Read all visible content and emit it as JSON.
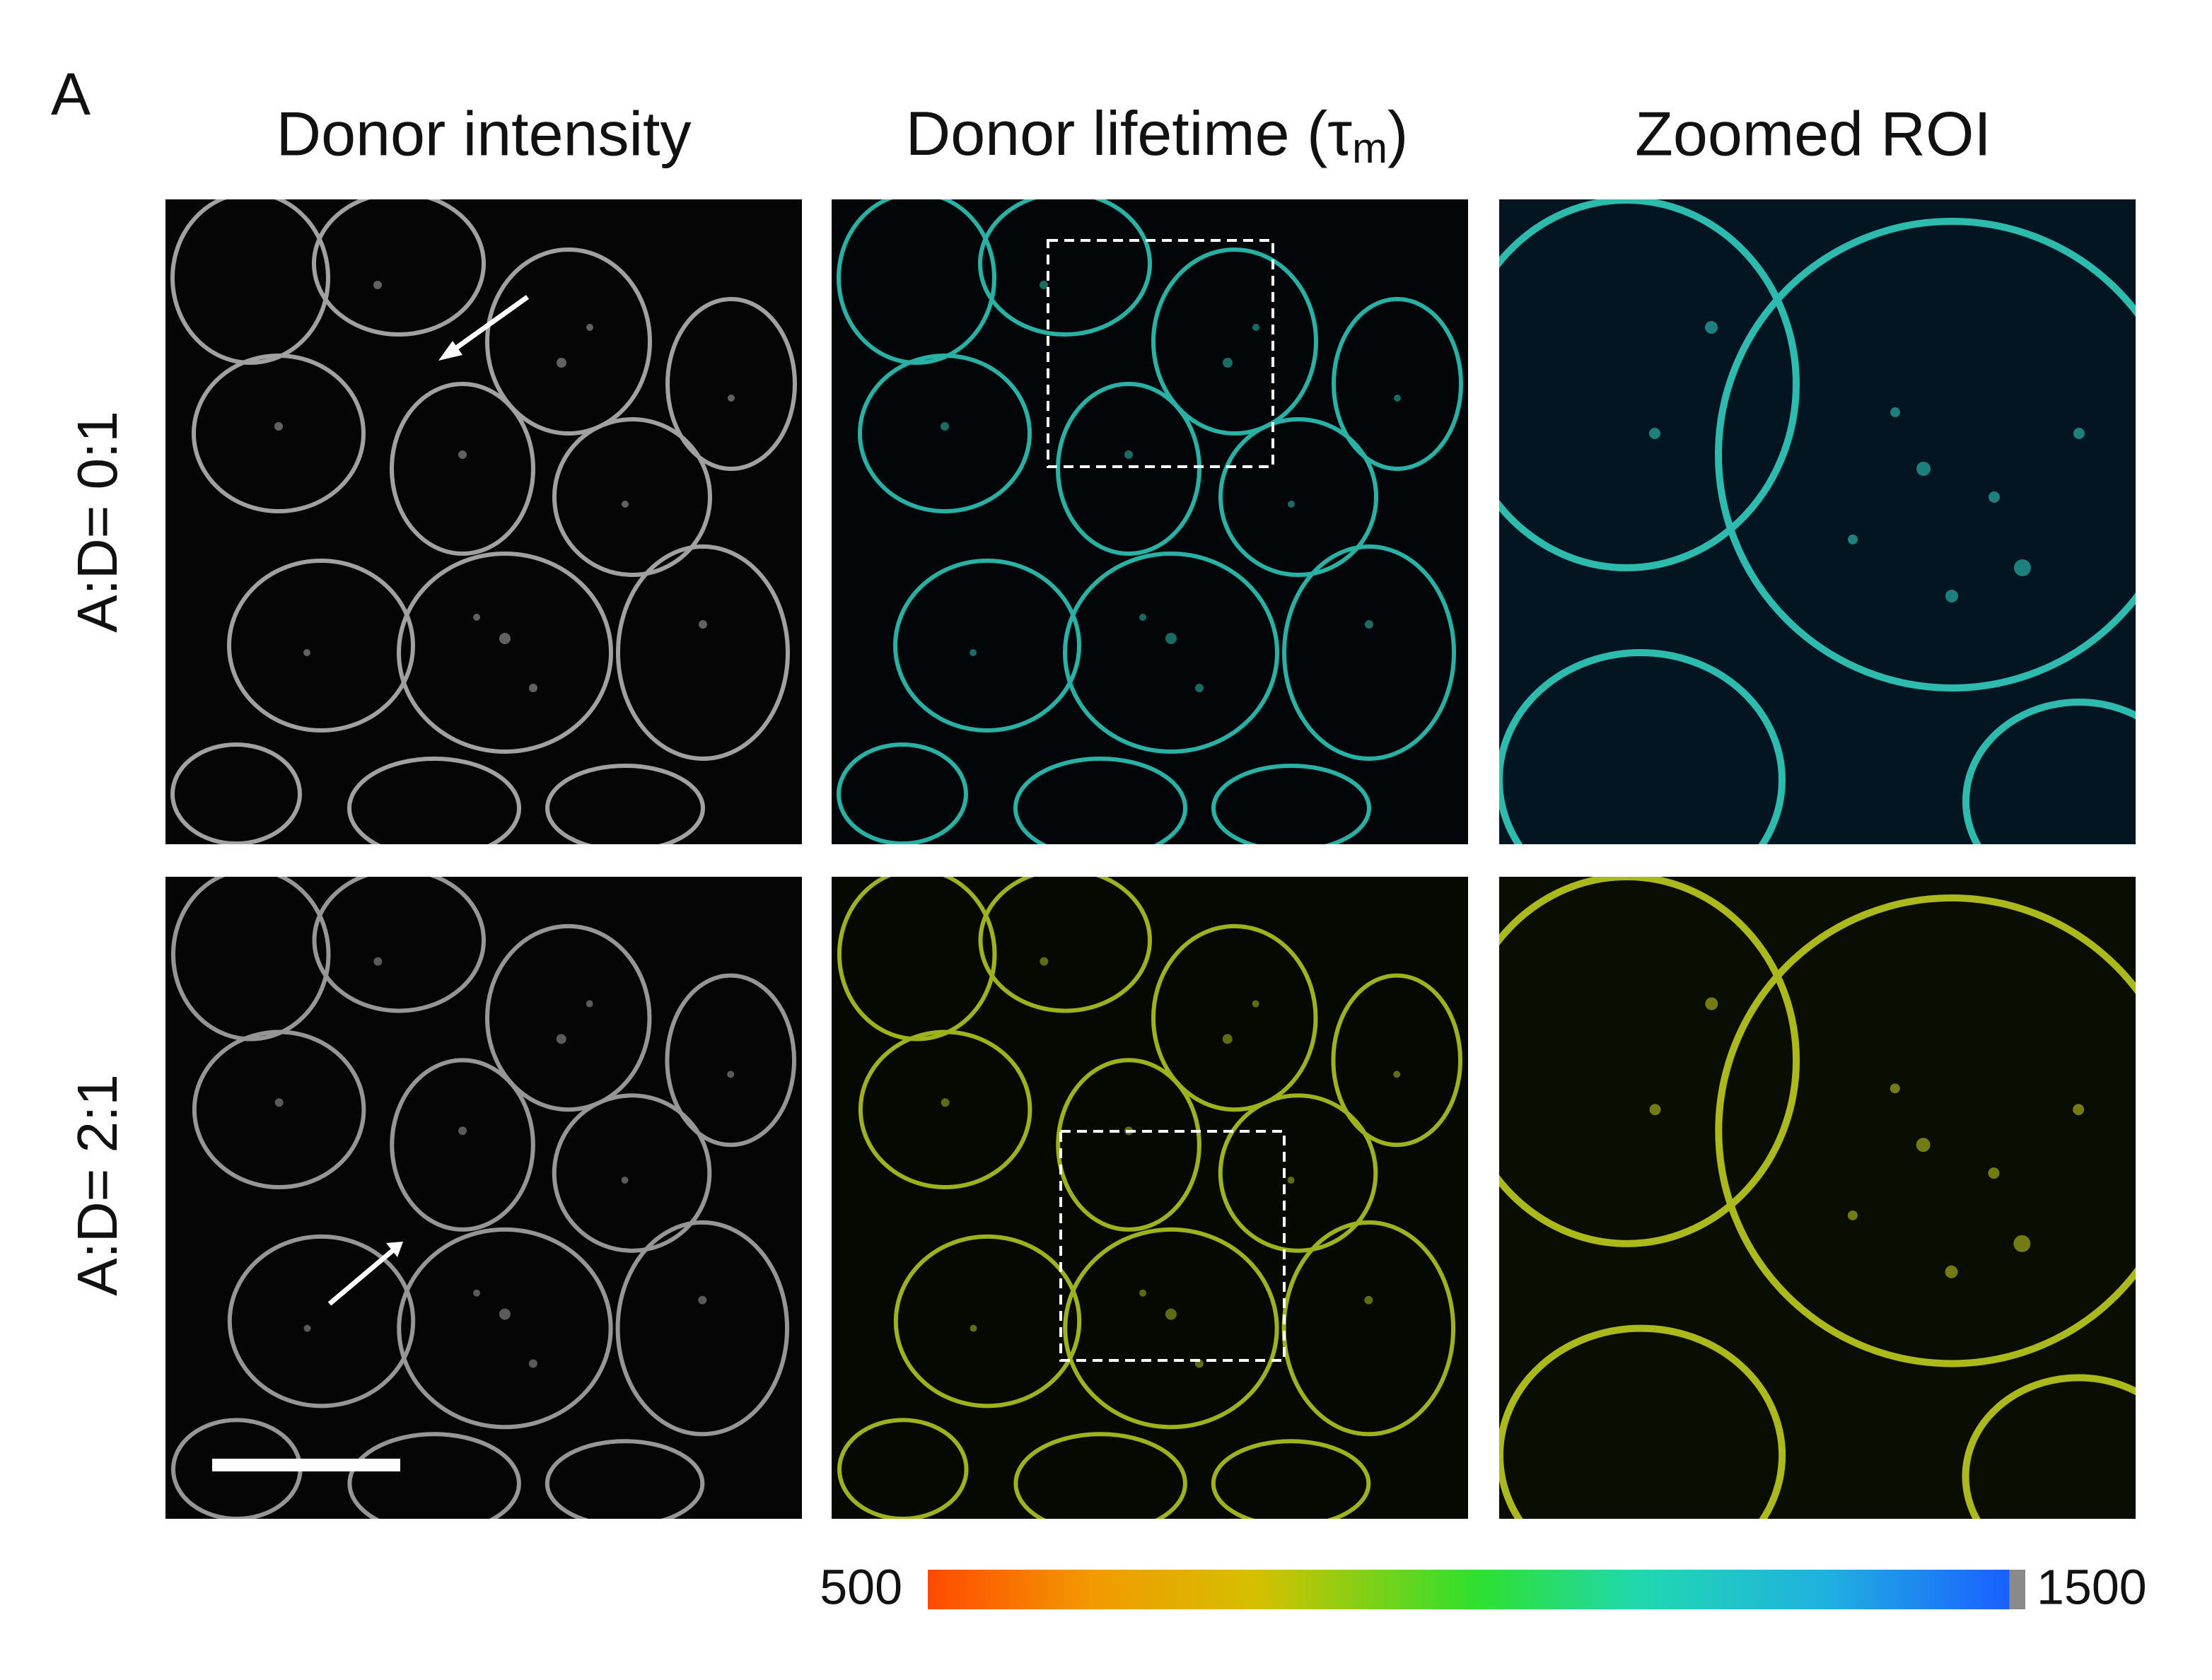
{
  "figure": {
    "panel_label": "A",
    "columns": [
      {
        "title": "Donor intensity"
      },
      {
        "title": "Donor lifetime (τ",
        "subscript": "m",
        "title_end": ")"
      },
      {
        "title": "Zoomed ROI"
      }
    ],
    "rows": [
      {
        "label": "A:D= 0:1"
      },
      {
        "label": "A:D= 2:1"
      }
    ],
    "colorbar": {
      "min": 500,
      "max": 1500
    }
  }
}
